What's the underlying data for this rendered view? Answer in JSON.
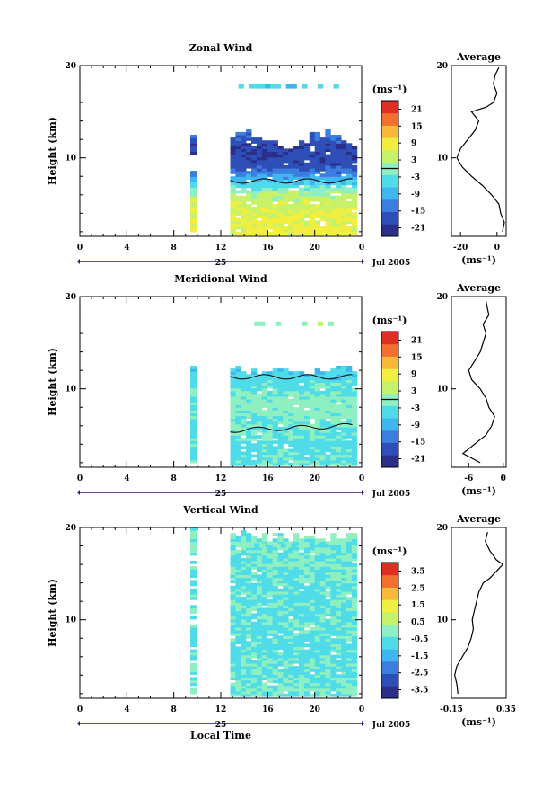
{
  "colors": {
    "colormap": [
      "#2b2f8a",
      "#2f4fb8",
      "#3b7ee0",
      "#3fb6ef",
      "#4fdce8",
      "#8ef0c0",
      "#c6f26a",
      "#f0ee3e",
      "#f8b83a",
      "#f2702e",
      "#e22e22"
    ],
    "contour": "#000000",
    "axis": "#000000",
    "date_axis": "#1a1a6e"
  },
  "panels": [
    {
      "title": "Zonal Wind",
      "ylabel": "Height (km)",
      "yticks": [
        "20",
        "10"
      ],
      "xticks": [
        "0",
        "4",
        "8",
        "12",
        "16",
        "20",
        "0"
      ],
      "date_day": "25",
      "date_month": "Jul 2005",
      "unit": "(ms⁻¹)",
      "cbar_ticks": [
        "21",
        "15",
        "9",
        "3",
        "-3",
        "-9",
        "-15",
        "-21"
      ],
      "avg_title": "Average",
      "avg_yticks": [
        "20",
        "10"
      ],
      "avg_xticks": [
        "-20",
        "0"
      ],
      "avg_unit": "(ms⁻¹)"
    },
    {
      "title": "Meridional Wind",
      "ylabel": "Height (km)",
      "yticks": [
        "20",
        "10"
      ],
      "xticks": [
        "0",
        "4",
        "8",
        "12",
        "16",
        "20",
        "0"
      ],
      "date_day": "25",
      "date_month": "Jul 2005",
      "unit": "(ms⁻¹)",
      "cbar_ticks": [
        "21",
        "15",
        "9",
        "3",
        "-3",
        "-9",
        "-15",
        "-21"
      ],
      "avg_title": "Average",
      "avg_yticks": [
        "20",
        "10"
      ],
      "avg_xticks": [
        "-6",
        "0"
      ],
      "avg_unit": "(ms⁻¹)"
    },
    {
      "title": "Vertical Wind",
      "ylabel": "Height (km)",
      "yticks": [
        "20",
        "10"
      ],
      "xticks": [
        "0",
        "4",
        "8",
        "12",
        "16",
        "20",
        "0"
      ],
      "date_day": "25",
      "date_month": "Jul 2005",
      "unit": "(ms⁻¹)",
      "cbar_ticks": [
        "3.5",
        "2.5",
        "1.5",
        "0.5",
        "-0.5",
        "-1.5",
        "-2.5",
        "-3.5"
      ],
      "avg_title": "Average",
      "avg_yticks": [
        "20",
        "10"
      ],
      "avg_xticks": [
        "-0.15",
        "0.35"
      ],
      "avg_unit": "(ms⁻¹)",
      "xlabel": "Local Time"
    }
  ],
  "chart_data": [
    {
      "type": "heatmap",
      "title": "Zonal Wind",
      "xlabel": "",
      "ylabel": "Height (km)",
      "xlim": [
        0,
        24
      ],
      "ylim": [
        1.5,
        20
      ],
      "clim": [
        -24,
        24
      ],
      "colorbar_ticks": [
        21,
        15,
        9,
        3,
        -3,
        -9,
        -15,
        -21
      ],
      "data_gaps_hours": [
        [
          0,
          9.3
        ],
        [
          10,
          12.8
        ]
      ],
      "profile": [
        {
          "h": 2,
          "v": 8
        },
        {
          "h": 4,
          "v": 7
        },
        {
          "h": 6,
          "v": 3
        },
        {
          "h": 7.5,
          "v": -8
        },
        {
          "h": 9,
          "v": -18
        },
        {
          "h": 11,
          "v": -19
        },
        {
          "h": 12.5,
          "v": -14
        },
        {
          "h": 16,
          "v": -8
        },
        {
          "h": 18,
          "v": -5
        }
      ]
    },
    {
      "type": "heatmap",
      "title": "Meridional Wind",
      "xlabel": "",
      "ylabel": "Height (km)",
      "xlim": [
        0,
        24
      ],
      "ylim": [
        1.5,
        20
      ],
      "clim": [
        -24,
        24
      ],
      "colorbar_ticks": [
        21,
        15,
        9,
        3,
        -3,
        -9,
        -15,
        -21
      ],
      "data_gaps_hours": [
        [
          0,
          9.3
        ],
        [
          10,
          12.8
        ]
      ],
      "profile": [
        {
          "h": 2,
          "v": -3
        },
        {
          "h": 4,
          "v": -4
        },
        {
          "h": 6,
          "v": -2
        },
        {
          "h": 8,
          "v": 0
        },
        {
          "h": 10,
          "v": -3
        },
        {
          "h": 12,
          "v": -6
        },
        {
          "h": 16.5,
          "v": 3
        }
      ]
    },
    {
      "type": "heatmap",
      "title": "Vertical Wind",
      "xlabel": "Local Time",
      "ylabel": "Height (km)",
      "xlim": [
        0,
        24
      ],
      "ylim": [
        1.5,
        20
      ],
      "clim": [
        -4,
        4
      ],
      "colorbar_ticks": [
        3.5,
        2.5,
        1.5,
        0.5,
        -0.5,
        -1.5,
        -2.5,
        -3.5
      ],
      "data_gaps_hours": [
        [
          0,
          9.3
        ],
        [
          10,
          12.8
        ]
      ],
      "profile": [
        {
          "h": 2,
          "v": -0.3
        },
        {
          "h": 6,
          "v": -0.6
        },
        {
          "h": 10,
          "v": -0.5
        },
        {
          "h": 14,
          "v": -0.5
        },
        {
          "h": 18,
          "v": -0.3
        }
      ]
    },
    {
      "type": "line",
      "title": "Average",
      "xlabel": "(ms⁻¹)",
      "ylabel": "",
      "ylim": [
        1.5,
        20
      ],
      "xlim": [
        -25,
        5
      ],
      "xticks": [
        -20,
        0
      ],
      "yticks": [
        20,
        10
      ],
      "x": [
        3,
        4,
        2,
        1,
        -3,
        -8,
        -14,
        -19,
        -22,
        -20,
        -16,
        -12,
        -10,
        -14,
        -6,
        -2,
        -1,
        0,
        -2,
        -1,
        1
      ],
      "y": [
        2,
        3,
        4,
        5,
        6,
        7,
        8,
        9,
        10,
        11,
        12,
        13,
        14,
        15,
        15.5,
        16,
        16.5,
        17,
        18,
        19,
        19.8
      ]
    },
    {
      "type": "line",
      "title": "Average",
      "xlabel": "(ms⁻¹)",
      "ylabel": "",
      "ylim": [
        1.5,
        20
      ],
      "xlim": [
        -9,
        0.5
      ],
      "xticks": [
        -6,
        0
      ],
      "yticks": [
        20,
        10
      ],
      "x": [
        -4,
        -7,
        -5,
        -3,
        -2,
        -1.5,
        -2.5,
        -3,
        -4,
        -5.5,
        -6,
        -5,
        -4.5,
        -4,
        -3.5,
        -3,
        -3.5,
        -2.5,
        -3
      ],
      "y": [
        2,
        3,
        4,
        5,
        6,
        7,
        8,
        9,
        10,
        11,
        12,
        13,
        13.5,
        14,
        15,
        16,
        17,
        18,
        19.5
      ]
    },
    {
      "type": "line",
      "title": "Average",
      "xlabel": "(ms⁻¹)",
      "ylabel": "",
      "ylim": [
        1.5,
        20
      ],
      "xlim": [
        -0.15,
        0.35
      ],
      "xticks": [
        -0.15,
        0.35
      ],
      "yticks": [
        20,
        10
      ],
      "x": [
        -0.09,
        -0.1,
        -0.12,
        -0.1,
        -0.05,
        0.0,
        0.03,
        0.05,
        0.04,
        0.06,
        0.08,
        0.1,
        0.14,
        0.2,
        0.24,
        0.28,
        0.32,
        0.26,
        0.2,
        0.16,
        0.18
      ],
      "y": [
        2,
        3,
        4,
        5,
        6,
        7,
        8,
        9,
        10,
        11,
        12,
        13,
        14,
        14.5,
        15,
        15.5,
        16,
        16.5,
        17.5,
        18.5,
        19.5
      ]
    }
  ]
}
